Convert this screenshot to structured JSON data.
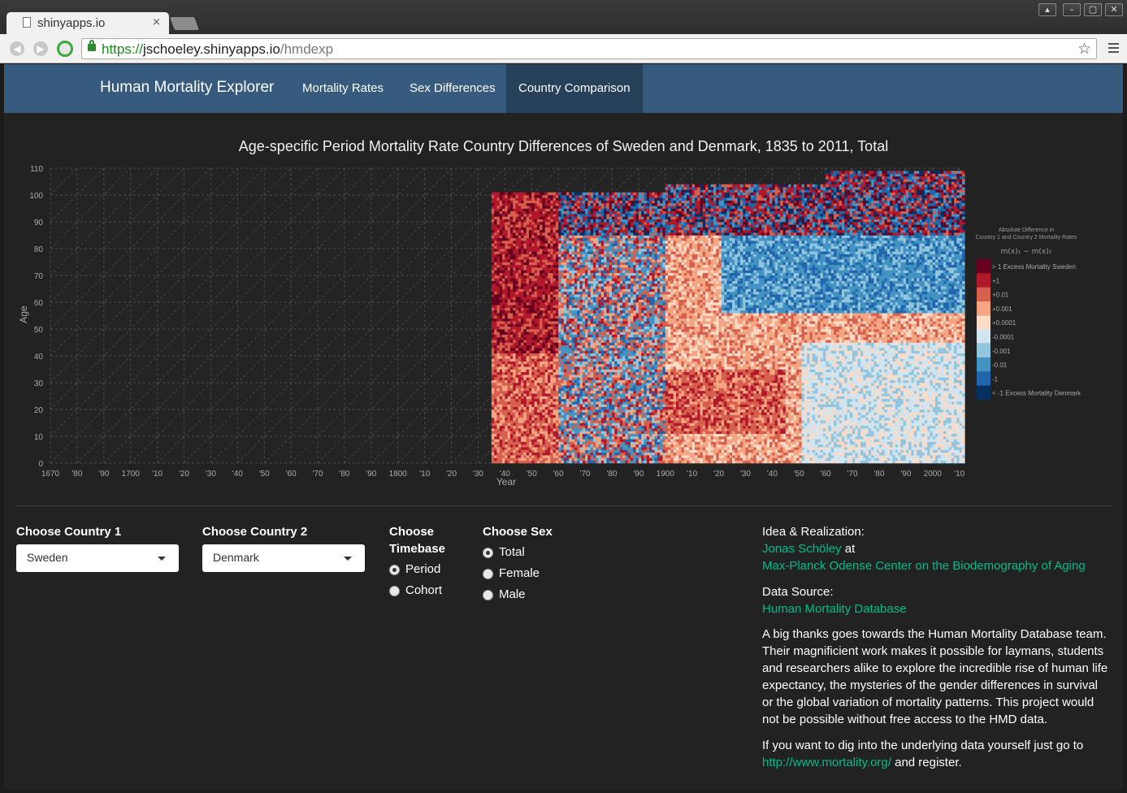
{
  "browser": {
    "tab_title": "shinyapps.io",
    "tab_close": "×",
    "url_scheme": "https://",
    "url_host": "jschoeley.shinyapps.io",
    "url_path": "/hmdexp",
    "window_buttons": [
      "▴",
      "–",
      "▢",
      "✕"
    ]
  },
  "navbar": {
    "brand": "Human Mortality Explorer",
    "links": [
      "Mortality Rates",
      "Sex Differences",
      "Country Comparison"
    ],
    "active": "Country Comparison"
  },
  "plot": {
    "title": "Age-specific Period Mortality Rate Country Differences of Sweden and Denmark, 1835 to 2011, Total",
    "xlabel": "Year",
    "ylabel": "Age",
    "legend_title_1": "Absolute Difference in",
    "legend_title_2": "Country 1 and Country 2 Mortality Rates",
    "legend_formula": "m(x)₁ − m(x)₂"
  },
  "chart_data": {
    "type": "heatmap",
    "title": "Age-specific Period Mortality Rate Country Differences of Sweden and Denmark, 1835 to 2011, Total",
    "xlabel": "Year",
    "ylabel": "Age",
    "xlim": [
      1670,
      2011
    ],
    "ylim": [
      0,
      110
    ],
    "data_xrange": [
      1835,
      2011
    ],
    "x_ticks": [
      "1670",
      "'80",
      "'90",
      "1700",
      "'10",
      "'20",
      "'30",
      "'40",
      "'50",
      "'60",
      "'70",
      "'80",
      "'90",
      "1800",
      "'10",
      "'20",
      "'30",
      "'40",
      "'50",
      "'60",
      "'70",
      "'80",
      "'90",
      "1900",
      "'10",
      "'20",
      "'30",
      "'40",
      "'50",
      "'60",
      "'70",
      "'80",
      "'90",
      "2000",
      "'10"
    ],
    "y_ticks": [
      "0",
      "10",
      "20",
      "30",
      "40",
      "50",
      "60",
      "70",
      "80",
      "90",
      "100",
      "110"
    ],
    "grid": true,
    "legend_placement": "right",
    "legend": [
      {
        "label": "> 1 Excess Mortality Sweden",
        "color": "#67001f"
      },
      {
        "label": "+1",
        "color": "#b2182b"
      },
      {
        "label": "+0.01",
        "color": "#d6604d"
      },
      {
        "label": "+0.001",
        "color": "#f4a582"
      },
      {
        "label": "+0.0001",
        "color": "#fddbc7"
      },
      {
        "label": "-0.0001",
        "color": "#d1e5f0"
      },
      {
        "label": "-0.001",
        "color": "#92c5de"
      },
      {
        "label": "-0.01",
        "color": "#4393c3"
      },
      {
        "label": "-1",
        "color": "#2166ac"
      },
      {
        "label": "< -1 Excess Mortality Denmark",
        "color": "#053061"
      }
    ]
  },
  "controls": {
    "country1_label": "Choose Country 1",
    "country1_value": "Sweden",
    "country2_label": "Choose Country 2",
    "country2_value": "Denmark",
    "timebase_label_1": "Choose",
    "timebase_label_2": "Timebase",
    "timebase_options": [
      "Period",
      "Cohort"
    ],
    "timebase_selected": "Period",
    "sex_label": "Choose Sex",
    "sex_options": [
      "Total",
      "Female",
      "Male"
    ],
    "sex_selected": "Total"
  },
  "info": {
    "idea_heading": "Idea & Realization:",
    "author_link": "Jonas Schöley",
    "author_suffix": " at",
    "institute_link": "Max-Planck Odense Center on the Biodemography of Aging",
    "source_heading": "Data Source:",
    "source_link": "Human Mortality Database",
    "thanks_text": "A big thanks goes towards the Human Mortality Database team. Their magnificient work makes it possible for laymans, students and researchers alike to explore the incredible rise of human life expectancy, the mysteries of the gender differences in survival or the global variation of mortality patterns. This project would not be possible without free access to the HMD data.",
    "dig_text": "If you want to dig into the underlying data yourself just go to",
    "dig_link": "http://www.mortality.org/",
    "dig_suffix": " and register."
  }
}
